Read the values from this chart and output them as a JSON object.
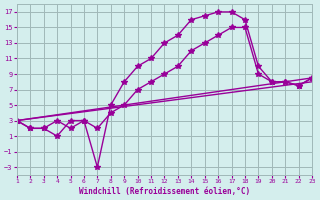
{
  "xlabel": "Windchill (Refroidissement éolien,°C)",
  "background_color": "#d4eeed",
  "grid_color": "#a0b8b8",
  "line_color": "#990099",
  "xlim": [
    1,
    23
  ],
  "ylim": [
    -4,
    18
  ],
  "xticks": [
    1,
    2,
    3,
    4,
    5,
    6,
    7,
    8,
    9,
    10,
    11,
    12,
    13,
    14,
    15,
    16,
    17,
    18,
    19,
    20,
    21,
    22,
    23
  ],
  "yticks": [
    -3,
    -1,
    1,
    3,
    5,
    7,
    9,
    11,
    13,
    15,
    17
  ],
  "curve1_x": [
    1,
    2,
    3,
    4,
    5,
    6,
    7,
    8,
    9,
    10,
    11,
    12,
    13,
    14,
    15,
    16,
    17,
    18,
    19,
    20,
    21,
    22,
    23
  ],
  "curve1_y": [
    3,
    2,
    2,
    1,
    3,
    3,
    -3,
    5,
    8,
    10,
    11,
    13,
    14,
    16,
    16.5,
    17,
    17,
    16,
    10,
    8,
    8,
    7.5,
    8.5
  ],
  "curve2_x": [
    1,
    2,
    3,
    4,
    5,
    6,
    7,
    8,
    9,
    10,
    11,
    12,
    13,
    14,
    15,
    16,
    17,
    18,
    19,
    20,
    21,
    22,
    23
  ],
  "curve2_y": [
    3,
    2,
    2,
    3,
    2,
    3,
    2,
    4,
    5,
    7,
    8,
    9,
    10,
    12,
    13,
    14,
    15,
    15,
    9,
    8,
    8,
    7.5,
    8.5
  ],
  "curve3_x": [
    1,
    23
  ],
  "curve3_y": [
    3,
    8.5
  ],
  "curve4_x": [
    1,
    23
  ],
  "curve4_y": [
    3,
    8.0
  ]
}
